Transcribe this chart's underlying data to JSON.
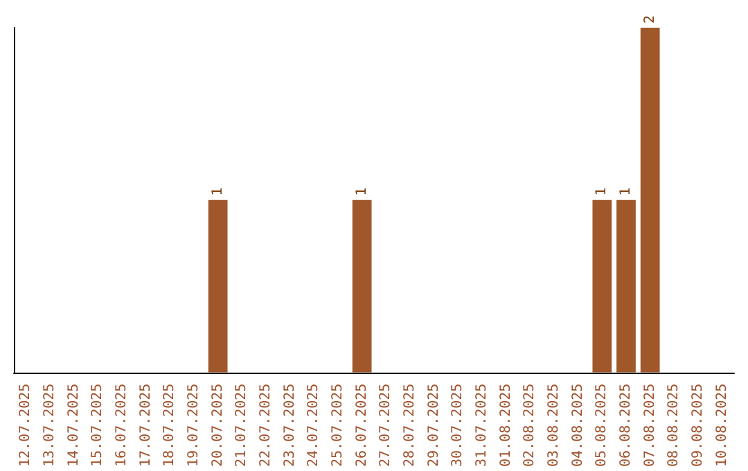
{
  "chart_data": {
    "type": "bar",
    "categories": [
      "12.07.2025",
      "13.07.2025",
      "14.07.2025",
      "15.07.2025",
      "16.07.2025",
      "17.07.2025",
      "18.07.2025",
      "19.07.2025",
      "20.07.2025",
      "21.07.2025",
      "22.07.2025",
      "23.07.2025",
      "24.07.2025",
      "25.07.2025",
      "26.07.2025",
      "27.07.2025",
      "28.07.2025",
      "29.07.2025",
      "30.07.2025",
      "31.07.2025",
      "01.08.2025",
      "02.08.2025",
      "03.08.2025",
      "04.08.2025",
      "05.08.2025",
      "06.08.2025",
      "07.08.2025",
      "08.08.2025",
      "09.08.2025",
      "10.08.2025"
    ],
    "values": [
      0,
      0,
      0,
      0,
      0,
      0,
      0,
      0,
      1,
      0,
      0,
      0,
      0,
      0,
      1,
      0,
      0,
      0,
      0,
      0,
      0,
      0,
      0,
      0,
      1,
      1,
      2,
      0,
      0,
      0
    ],
    "value_labels": [
      null,
      null,
      null,
      null,
      null,
      null,
      null,
      null,
      "1",
      null,
      null,
      null,
      null,
      null,
      "1",
      null,
      null,
      null,
      null,
      null,
      null,
      null,
      null,
      null,
      "1",
      "1",
      "2",
      null,
      null,
      null
    ],
    "color": "#a0582a",
    "grid": false,
    "tick_labels": "x"
  }
}
